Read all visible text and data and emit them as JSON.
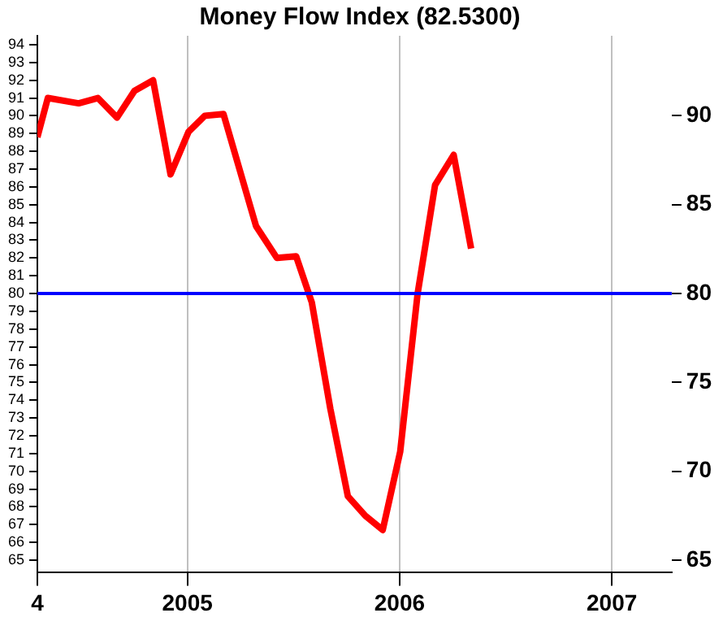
{
  "chart_data": {
    "type": "line",
    "title": "Money Flow Index (82.5300)",
    "x": [
      "2004-04-18",
      "2004-05-06",
      "2004-06-28",
      "2004-07-31",
      "2004-09-02",
      "2004-10-02",
      "2004-11-03",
      "2004-12-03",
      "2005-01-03",
      "2005-01-31",
      "2005-03-04",
      "2005-04-29",
      "2005-06-04",
      "2005-07-07",
      "2005-08-03",
      "2005-09-04",
      "2005-10-04",
      "2005-11-03",
      "2005-12-03",
      "2006-01-02",
      "2006-02-01",
      "2006-03-03",
      "2006-04-04",
      "2006-05-04"
    ],
    "series": [
      {
        "color": "#ff0000",
        "values": [
          88.8,
          91.0,
          90.7,
          91.0,
          89.9,
          91.4,
          92.0,
          86.7,
          89.1,
          90.0,
          90.1,
          83.8,
          82.0,
          82.1,
          79.5,
          73.5,
          68.6,
          67.5,
          66.7,
          71.1,
          80.0,
          86.1,
          87.8,
          82.53
        ]
      }
    ],
    "xlim": [
      "2004-04-18",
      "2007-04-14"
    ],
    "xticks": [
      {
        "value": "2004-04-18",
        "label": "4"
      },
      {
        "value": "2005-01-01",
        "label": "2005"
      },
      {
        "value": "2006-01-01",
        "label": "2006"
      },
      {
        "value": "2007-01-01",
        "label": "2007"
      }
    ],
    "ylim": [
      64.3,
      94.5
    ],
    "yticks": [
      65,
      66,
      67,
      68,
      69,
      70,
      71,
      72,
      73,
      74,
      75,
      76,
      77,
      78,
      79,
      80,
      81,
      82,
      83,
      84,
      85,
      86,
      87,
      88,
      89,
      90,
      91,
      92,
      93,
      94
    ],
    "y2lim": [
      64.3,
      94.5
    ],
    "y2ticks": [
      65,
      70,
      75,
      80,
      85,
      90
    ],
    "ref_lines": [
      {
        "axis": "y",
        "value": 80,
        "color": "#0000ff"
      }
    ],
    "grid": "x",
    "legend": false,
    "marker": "none",
    "line_style": "solid"
  }
}
